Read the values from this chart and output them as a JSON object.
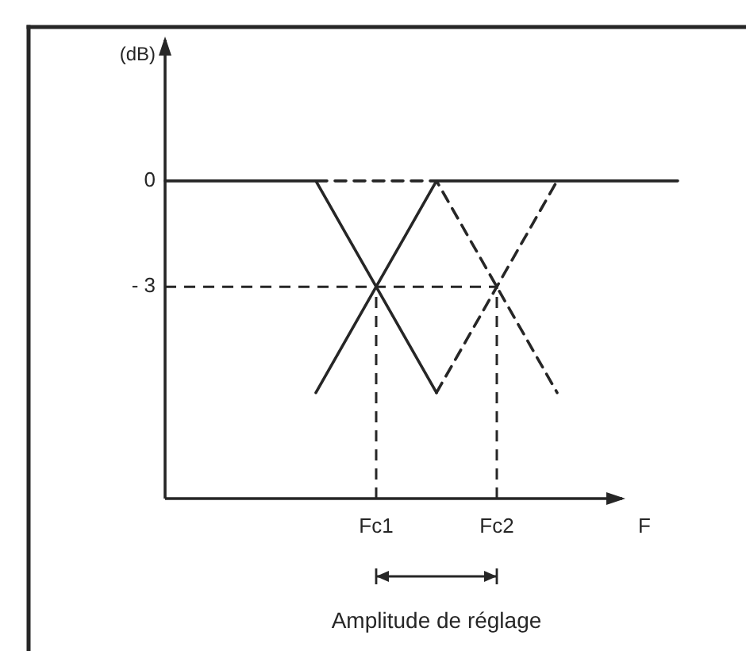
{
  "chart_data": {
    "type": "line",
    "ylabel": "(dB)",
    "xlabel": "F",
    "categories": [
      null,
      null,
      null,
      null,
      null,
      null,
      null,
      "Fc1",
      null,
      null,
      null,
      "Fc2",
      null,
      null,
      null,
      null,
      null,
      null
    ],
    "ylim": [
      -9,
      4
    ],
    "yticks": [
      0,
      {
        "value": -3,
        "label": "- 3"
      }
    ],
    "series": [
      {
        "color": "#262626",
        "line_style": "solid",
        "values": [
          0,
          0,
          0,
          0,
          0,
          0,
          -1.5,
          -3,
          -4.5,
          -6,
          null,
          null,
          null,
          null,
          null,
          null,
          null,
          null
        ]
      },
      {
        "color": "#262626",
        "line_style": "solid",
        "values": [
          null,
          null,
          null,
          null,
          null,
          -6,
          -4.5,
          -3,
          -1.5,
          0,
          0,
          0,
          0,
          0,
          0,
          0,
          0,
          0
        ]
      },
      {
        "color": "#262626",
        "line_style": "dashed",
        "values": [
          null,
          null,
          null,
          null,
          null,
          0,
          0,
          0,
          0,
          0,
          -1.5,
          -3,
          -4.5,
          -6,
          null,
          null,
          null,
          null
        ]
      },
      {
        "color": "#262626",
        "line_style": "dashed",
        "values": [
          null,
          null,
          null,
          null,
          null,
          null,
          null,
          null,
          null,
          -6,
          -4.5,
          -3,
          -1.5,
          0,
          null,
          null,
          null,
          null
        ]
      }
    ],
    "ref_lines": [
      {
        "axis": "y",
        "value": -3,
        "color": "#262626",
        "line_style": "dashed"
      },
      {
        "axis": "x",
        "value": "Fc1",
        "color": "#262626",
        "line_style": "dashed"
      },
      {
        "axis": "x",
        "value": "Fc2",
        "color": "#262626",
        "line_style": "dashed"
      }
    ],
    "annotations": [
      "Amplitude de réglage"
    ]
  }
}
